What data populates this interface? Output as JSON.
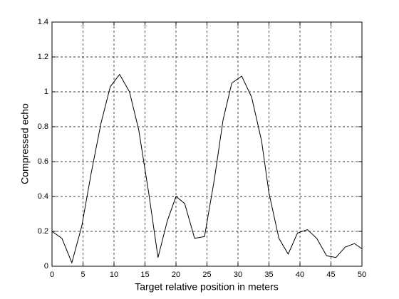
{
  "chart_data": {
    "type": "line",
    "xlabel": "Target relative position in meters",
    "ylabel": "Compressed echo",
    "x": [
      0,
      1.6,
      3.2,
      4.8,
      6.3,
      7.9,
      9.4,
      10.9,
      12.5,
      14.0,
      15.6,
      17.1,
      18.6,
      20.0,
      21.4,
      23.0,
      24.6,
      26.2,
      27.6,
      29.0,
      30.6,
      32.2,
      33.8,
      35.0,
      36.6,
      38.1,
      39.6,
      41.2,
      42.7,
      44.3,
      45.8,
      47.3,
      48.8,
      50
    ],
    "series": [
      {
        "color": "#000000",
        "values": [
          0.2,
          0.16,
          0.02,
          0.23,
          0.53,
          0.82,
          1.03,
          1.1,
          1.0,
          0.78,
          0.42,
          0.05,
          0.26,
          0.4,
          0.36,
          0.16,
          0.17,
          0.5,
          0.84,
          1.05,
          1.09,
          0.97,
          0.72,
          0.42,
          0.16,
          0.07,
          0.19,
          0.21,
          0.16,
          0.06,
          0.05,
          0.11,
          0.13,
          0.1
        ]
      }
    ],
    "xlim": [
      0,
      50
    ],
    "xticks": [
      0,
      5,
      10,
      15,
      20,
      25,
      30,
      35,
      40,
      45,
      50
    ],
    "ylim": [
      0,
      1.4
    ],
    "yticks": [
      0,
      0.2,
      0.4,
      0.6,
      0.8,
      1,
      1.2,
      1.4
    ],
    "grid": true
  }
}
